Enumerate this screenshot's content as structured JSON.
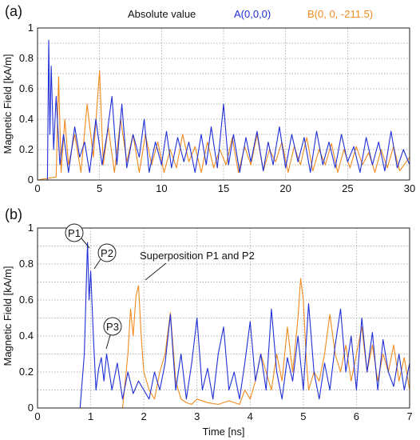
{
  "colors": {
    "series_a": "#1f2fd6",
    "series_b": "#f08a1e",
    "text": "#111111",
    "grid": "#9a9a9a"
  },
  "chart_data": [
    {
      "panel_label": "(a)",
      "type": "line",
      "xlabel": "",
      "ylabel": "Magnetic Field [kA/m]",
      "xlim": [
        0,
        30
      ],
      "ylim": [
        0,
        1
      ],
      "x_ticks": [
        "0",
        "5",
        "10",
        "15",
        "20",
        "25",
        "30"
      ],
      "y_ticks": [
        "0",
        "0.2",
        "0.4",
        "0.6",
        "0.8",
        "1"
      ],
      "grid": true,
      "legend_position": "top",
      "legend": [
        "Absolute value",
        "A(0,0,0)",
        "B(0, 0, -211.5)"
      ],
      "series": [
        {
          "name": "A(0,0,0)",
          "x": [
            0,
            0.8,
            0.9,
            1.0,
            1.1,
            1.3,
            1.5,
            1.8,
            2.1,
            2.5,
            3.0,
            3.4,
            3.8,
            4.2,
            4.7,
            5.2,
            5.6,
            6.0,
            6.4,
            6.8,
            7.2,
            7.7,
            8.2,
            8.6,
            9.0,
            9.5,
            10.0,
            10.4,
            10.8,
            11.3,
            11.8,
            12.2,
            12.7,
            13.2,
            13.6,
            14.0,
            14.5,
            15.0,
            15.4,
            15.8,
            16.3,
            16.8,
            17.2,
            17.7,
            18.2,
            18.6,
            19.0,
            19.5,
            20.0,
            20.5,
            21.0,
            21.5,
            22.0,
            22.5,
            23.0,
            23.5,
            24.0,
            24.5,
            25.0,
            25.5,
            26.0,
            26.5,
            27.0,
            27.5,
            28.0,
            28.5,
            29.0,
            29.5,
            30.0
          ],
          "y": [
            0,
            0.0,
            0.92,
            0.3,
            0.75,
            0.2,
            0.55,
            0.1,
            0.3,
            0.05,
            0.35,
            0.15,
            0.25,
            0.05,
            0.4,
            0.1,
            0.3,
            0.55,
            0.1,
            0.5,
            0.08,
            0.3,
            0.15,
            0.4,
            0.05,
            0.25,
            0.1,
            0.32,
            0.08,
            0.28,
            0.12,
            0.25,
            0.05,
            0.3,
            0.1,
            0.35,
            0.08,
            0.5,
            0.1,
            0.3,
            0.05,
            0.28,
            0.12,
            0.32,
            0.06,
            0.25,
            0.1,
            0.35,
            0.08,
            0.3,
            0.12,
            0.28,
            0.05,
            0.32,
            0.1,
            0.25,
            0.08,
            0.3,
            0.12,
            0.22,
            0.05,
            0.28,
            0.1,
            0.25,
            0.06,
            0.32,
            0.08,
            0.2,
            0.1
          ]
        },
        {
          "name": "B(0, 0, -211.5)",
          "x": [
            0,
            1.5,
            1.7,
            1.9,
            2.2,
            2.5,
            3.0,
            3.5,
            4.0,
            4.5,
            5.0,
            5.3,
            5.7,
            6.2,
            6.7,
            7.2,
            7.7,
            8.2,
            8.7,
            9.2,
            9.7,
            10.2,
            10.7,
            11.2,
            11.7,
            12.2,
            12.7,
            13.2,
            13.7,
            14.2,
            14.7,
            15.2,
            15.7,
            16.2,
            16.7,
            17.2,
            17.7,
            18.2,
            18.7,
            19.2,
            19.7,
            20.2,
            20.7,
            21.2,
            21.7,
            22.2,
            22.7,
            23.2,
            23.7,
            24.2,
            24.7,
            25.2,
            25.7,
            26.2,
            26.7,
            27.2,
            27.7,
            28.2,
            28.7,
            29.2,
            30.0
          ],
          "y": [
            0,
            0.02,
            0.68,
            0.05,
            0.4,
            0.1,
            0.3,
            0.05,
            0.5,
            0.15,
            0.72,
            0.1,
            0.35,
            0.05,
            0.4,
            0.12,
            0.3,
            0.05,
            0.3,
            0.1,
            0.25,
            0.05,
            0.2,
            0.08,
            0.3,
            0.12,
            0.22,
            0.05,
            0.25,
            0.08,
            0.2,
            0.1,
            0.28,
            0.05,
            0.22,
            0.1,
            0.3,
            0.06,
            0.2,
            0.12,
            0.25,
            0.05,
            0.22,
            0.1,
            0.28,
            0.06,
            0.2,
            0.1,
            0.24,
            0.05,
            0.2,
            0.08,
            0.22,
            0.1,
            0.18,
            0.05,
            0.2,
            0.08,
            0.22,
            0.06,
            0.15
          ]
        }
      ]
    },
    {
      "panel_label": "(b)",
      "type": "line",
      "xlabel": "Time [ns]",
      "ylabel": "Magnetic Field [kA/m]",
      "xlim": [
        0,
        7
      ],
      "ylim": [
        0,
        1
      ],
      "x_ticks": [
        "0",
        "1",
        "2",
        "3",
        "4",
        "5",
        "6",
        "7"
      ],
      "y_ticks": [
        "0",
        "0.2",
        "0.4",
        "0.6",
        "0.8",
        "1"
      ],
      "grid": true,
      "annotations": [
        "P1",
        "P2",
        "P3",
        "Superposition P1 and P2"
      ],
      "series": [
        {
          "name": "A(0,0,0)",
          "x": [
            0,
            0.8,
            0.88,
            0.94,
            0.97,
            1.0,
            1.05,
            1.1,
            1.15,
            1.2,
            1.25,
            1.3,
            1.35,
            1.4,
            1.5,
            1.6,
            1.7,
            1.8,
            1.9,
            2.0,
            2.1,
            2.2,
            2.3,
            2.4,
            2.5,
            2.55,
            2.6,
            2.7,
            2.8,
            2.9,
            3.0,
            3.1,
            3.2,
            3.3,
            3.4,
            3.5,
            3.6,
            3.7,
            3.8,
            3.9,
            4.0,
            4.1,
            4.2,
            4.3,
            4.4,
            4.5,
            4.6,
            4.7,
            4.8,
            4.9,
            5.0,
            5.1,
            5.2,
            5.3,
            5.4,
            5.5,
            5.6,
            5.7,
            5.8,
            5.9,
            6.0,
            6.1,
            6.2,
            6.3,
            6.4,
            6.5,
            6.6,
            6.7,
            6.8,
            6.9,
            7.0
          ],
          "y": [
            0,
            0.0,
            0.3,
            0.92,
            0.6,
            0.76,
            0.4,
            0.1,
            0.22,
            0.28,
            0.15,
            0.3,
            0.2,
            0.1,
            0.25,
            0.05,
            0.2,
            0.08,
            0.15,
            0.1,
            0.05,
            0.2,
            0.1,
            0.25,
            0.52,
            0.3,
            0.1,
            0.3,
            0.05,
            0.25,
            0.5,
            0.1,
            0.22,
            0.05,
            0.3,
            0.45,
            0.1,
            0.2,
            0.05,
            0.25,
            0.48,
            0.15,
            0.3,
            0.1,
            0.55,
            0.2,
            0.05,
            0.28,
            0.15,
            0.4,
            0.1,
            0.58,
            0.2,
            0.05,
            0.25,
            0.1,
            0.35,
            0.55,
            0.2,
            0.4,
            0.1,
            0.5,
            0.2,
            0.42,
            0.1,
            0.38,
            0.2,
            0.12,
            0.3,
            0.1,
            0.25
          ]
        },
        {
          "name": "B(0, 0, -211.5)",
          "x": [
            0,
            1.6,
            1.7,
            1.75,
            1.8,
            1.85,
            1.9,
            1.95,
            2.0,
            2.1,
            2.2,
            2.3,
            2.4,
            2.5,
            2.6,
            2.7,
            2.8,
            2.9,
            3.0,
            3.2,
            3.4,
            3.6,
            3.8,
            3.9,
            4.0,
            4.1,
            4.2,
            4.3,
            4.4,
            4.5,
            4.6,
            4.7,
            4.8,
            4.9,
            4.95,
            5.0,
            5.05,
            5.1,
            5.2,
            5.3,
            5.4,
            5.5,
            5.6,
            5.7,
            5.8,
            5.9,
            6.0,
            6.1,
            6.2,
            6.3,
            6.4,
            6.5,
            6.6,
            6.7,
            6.8,
            6.9,
            7.0
          ],
          "y": [
            0,
            0.0,
            0.3,
            0.55,
            0.4,
            0.62,
            0.68,
            0.4,
            0.2,
            0.1,
            0.05,
            0.2,
            0.3,
            0.53,
            0.15,
            0.05,
            0.03,
            0.02,
            0.05,
            0.03,
            0.02,
            0.04,
            0.02,
            0.1,
            0.05,
            0.15,
            0.3,
            0.2,
            0.1,
            0.3,
            0.15,
            0.45,
            0.2,
            0.5,
            0.72,
            0.6,
            0.3,
            0.1,
            0.2,
            0.15,
            0.3,
            0.52,
            0.3,
            0.2,
            0.35,
            0.15,
            0.3,
            0.45,
            0.2,
            0.35,
            0.15,
            0.3,
            0.2,
            0.35,
            0.15,
            0.28,
            0.1
          ]
        }
      ]
    }
  ]
}
